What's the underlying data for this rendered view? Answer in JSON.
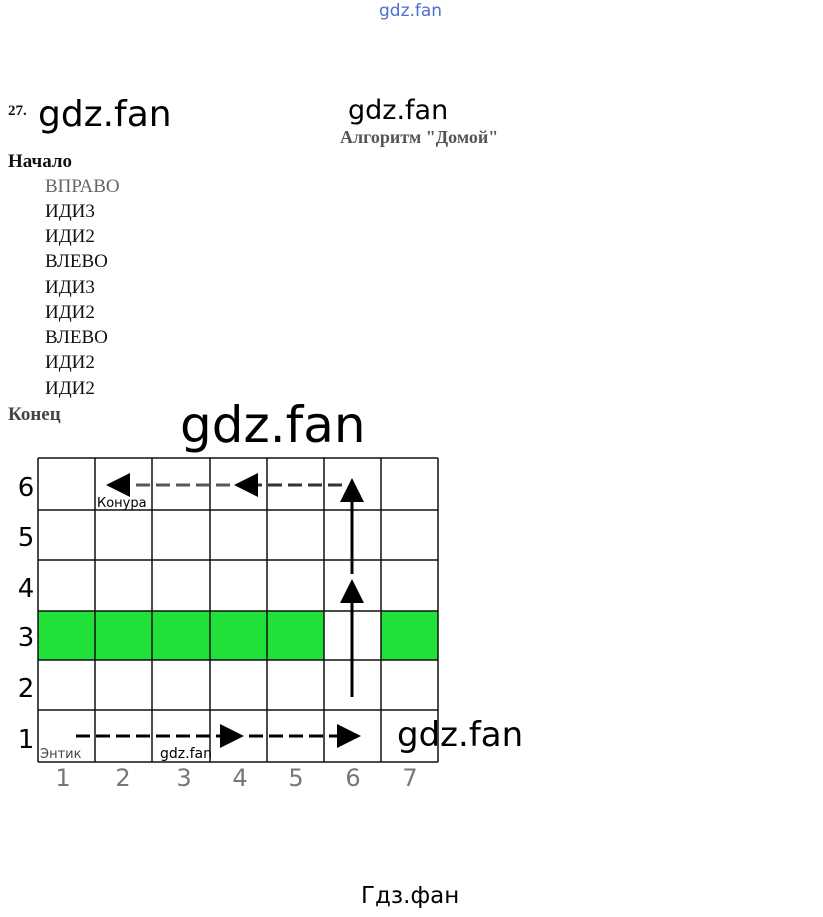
{
  "watermarks": {
    "top": "gdz.fan",
    "header_left": "gdz.fan",
    "header_right": "gdz.fan",
    "middle": "gdz.fan",
    "grid_right": "gdz.fan",
    "grid_inner": "gdz.fan",
    "footer": "Гдз.фан"
  },
  "task": {
    "number": "27.",
    "title": "Алгоритм \"Домой\"",
    "start": "Начало",
    "commands": [
      "ВПРАВО",
      "ИДИ3",
      "ИДИ2",
      "ВЛЕВО",
      "ИДИ3",
      "ИДИ2",
      "ВЛЕВО",
      "ИДИ2",
      "ИДИ2"
    ],
    "end": "Конец"
  },
  "grid": {
    "columns": [
      "1",
      "2",
      "3",
      "4",
      "5",
      "6",
      "7"
    ],
    "rows": [
      "6",
      "5",
      "4",
      "3",
      "2",
      "1"
    ],
    "wall_row": "3",
    "wall_gap_column": "6",
    "wall_color": "#22e03a",
    "start_label": "Энтик",
    "home_label": "Конура"
  }
}
